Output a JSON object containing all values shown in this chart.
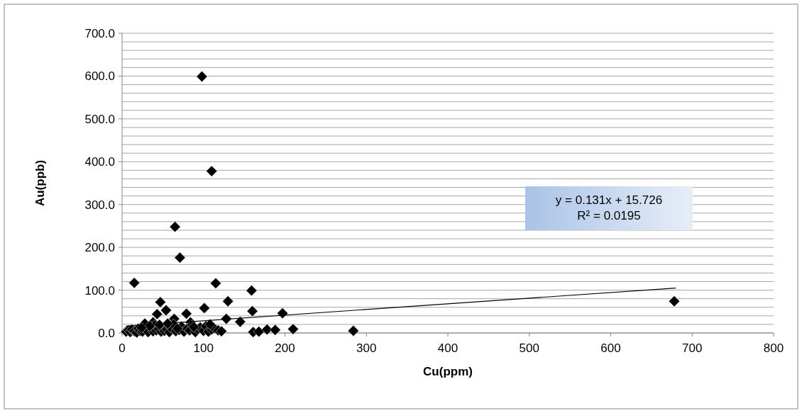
{
  "chart_data": {
    "type": "scatter",
    "xlabel": "Cu(ppm)",
    "ylabel": "Au(ppb)",
    "xlim": [
      0,
      800
    ],
    "xticks": [
      0,
      100,
      200,
      300,
      400,
      500,
      600,
      700,
      800
    ],
    "ylim": [
      0,
      700
    ],
    "yticks": [
      {
        "value": 0,
        "label": "0.0"
      },
      {
        "value": 20,
        "label": null
      },
      {
        "value": 40,
        "label": null
      },
      {
        "value": 60,
        "label": null
      },
      {
        "value": 80,
        "label": null
      },
      {
        "value": 100,
        "label": "100.0"
      },
      {
        "value": 120,
        "label": null
      },
      {
        "value": 140,
        "label": null
      },
      {
        "value": 160,
        "label": null
      },
      {
        "value": 180,
        "label": null
      },
      {
        "value": 200,
        "label": "200.0"
      },
      {
        "value": 220,
        "label": null
      },
      {
        "value": 240,
        "label": null
      },
      {
        "value": 260,
        "label": null
      },
      {
        "value": 280,
        "label": null
      },
      {
        "value": 300,
        "label": "300.0"
      },
      {
        "value": 320,
        "label": null
      },
      {
        "value": 340,
        "label": null
      },
      {
        "value": 360,
        "label": null
      },
      {
        "value": 380,
        "label": null
      },
      {
        "value": 400,
        "label": "400.0"
      },
      {
        "value": 420,
        "label": null
      },
      {
        "value": 440,
        "label": null
      },
      {
        "value": 460,
        "label": null
      },
      {
        "value": 480,
        "label": null
      },
      {
        "value": 500,
        "label": "500.0"
      },
      {
        "value": 520,
        "label": null
      },
      {
        "value": 540,
        "label": null
      },
      {
        "value": 560,
        "label": null
      },
      {
        "value": 580,
        "label": null
      },
      {
        "value": 600,
        "label": "600.0"
      },
      {
        "value": 620,
        "label": null
      },
      {
        "value": 640,
        "label": null
      },
      {
        "value": 660,
        "label": null
      },
      {
        "value": 680,
        "label": null
      },
      {
        "value": 700,
        "label": "700.0"
      }
    ],
    "grid": "y",
    "marker": "diamond",
    "annotations": [
      "y = 0.131x + 15.726\nR² = 0.0195"
    ],
    "series": [
      {
        "color": "#000000",
        "x": [
          98,
          110,
          65,
          71,
          15,
          115,
          159,
          47,
          130,
          54,
          43,
          79,
          101,
          160,
          197,
          128,
          145,
          64,
          84,
          38,
          161,
          168,
          178,
          188,
          210,
          284,
          678,
          5,
          8,
          10,
          12,
          15,
          18,
          20,
          22,
          25,
          32,
          38,
          40,
          42,
          45,
          48,
          52,
          55,
          58,
          60,
          63,
          66,
          70,
          73,
          76,
          80,
          83,
          86,
          90,
          93,
          96,
          100,
          103,
          106,
          110,
          113,
          118,
          122,
          28,
          34,
          46,
          56,
          68,
          88,
          108,
          24
        ],
        "values": [
          599,
          378,
          248,
          176,
          117,
          116,
          99,
          72,
          74,
          53,
          44,
          45,
          58,
          51,
          46,
          33,
          26,
          33,
          25,
          25,
          2,
          3,
          8,
          7,
          9,
          5,
          74,
          3,
          6,
          2,
          8,
          4,
          1,
          10,
          5,
          3,
          2,
          4,
          18,
          6,
          9,
          3,
          5,
          8,
          2,
          12,
          20,
          4,
          7,
          15,
          3,
          10,
          6,
          18,
          2,
          9,
          13,
          5,
          16,
          3,
          8,
          11,
          6,
          4,
          22,
          16,
          19,
          22,
          10,
          14,
          20,
          12
        ]
      },
      {
        "type": "line",
        "marker": "none",
        "color": "#000000",
        "x": [
          5,
          680
        ],
        "values": [
          16,
          105
        ]
      }
    ]
  }
}
